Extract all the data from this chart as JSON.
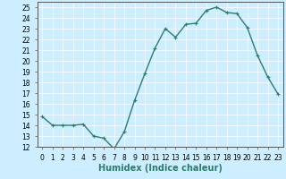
{
  "x": [
    0,
    1,
    2,
    3,
    4,
    5,
    6,
    7,
    8,
    9,
    10,
    11,
    12,
    13,
    14,
    15,
    16,
    17,
    18,
    19,
    20,
    21,
    22,
    23
  ],
  "y": [
    14.8,
    14.0,
    14.0,
    14.0,
    14.1,
    13.0,
    12.8,
    11.8,
    13.4,
    16.3,
    18.8,
    21.2,
    23.0,
    22.2,
    23.4,
    23.5,
    24.7,
    25.0,
    24.5,
    24.4,
    23.1,
    20.5,
    18.5,
    16.9
  ],
  "line_color": "#2d7d6e",
  "marker": "+",
  "bg_color": "#cceeff",
  "grid_color": "#b0d8d8",
  "xlabel": "Humidex (Indice chaleur)",
  "ylim": [
    12,
    25.5
  ],
  "xlim": [
    -0.5,
    23.5
  ],
  "yticks": [
    12,
    13,
    14,
    15,
    16,
    17,
    18,
    19,
    20,
    21,
    22,
    23,
    24,
    25
  ],
  "xticks": [
    0,
    1,
    2,
    3,
    4,
    5,
    6,
    7,
    8,
    9,
    10,
    11,
    12,
    13,
    14,
    15,
    16,
    17,
    18,
    19,
    20,
    21,
    22,
    23
  ],
  "xtick_labels": [
    "0",
    "1",
    "2",
    "3",
    "4",
    "5",
    "6",
    "7",
    "8",
    "9",
    "10",
    "11",
    "12",
    "13",
    "14",
    "15",
    "16",
    "17",
    "18",
    "19",
    "20",
    "21",
    "22",
    "23"
  ],
  "xlabel_fontsize": 7,
  "tick_fontsize": 5.5,
  "line_width": 1.0,
  "marker_size": 3
}
